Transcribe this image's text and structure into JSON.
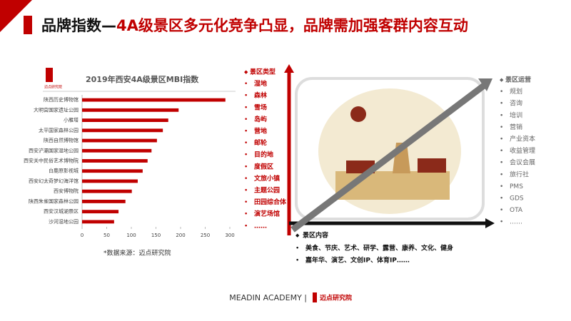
{
  "header": {
    "title_black": "品牌指数—",
    "title_red": "4A级景区多元化竞争凸显，品牌需加强客群内容互动"
  },
  "chart_data": {
    "type": "bar",
    "orientation": "horizontal",
    "title": "2019年西安4A级景区MBI指数",
    "logo": "迈点研究院",
    "categories": [
      "陕西历史博物馆",
      "大明宫国家遗址公园",
      "小雁塔",
      "太平国家森林公园",
      "陕西自然博物馆",
      "西安浐灞国家湿地公园",
      "西安关中民俗艺术博物院",
      "白鹿原影视城",
      "西安幻太奇梦幻海洋馆",
      "西安博物院",
      "陕西朱雀国家森林公园",
      "西安汉城湖景区",
      "沙河湿地公园"
    ],
    "values": [
      291,
      196,
      175,
      164,
      152,
      141,
      133,
      123,
      113,
      101,
      88,
      74,
      65
    ],
    "color": "#c00000",
    "xlim": [
      0,
      300
    ],
    "xticks": [
      0,
      50,
      100,
      150,
      200,
      250,
      300
    ],
    "source": "*数据来源：迈点研究院"
  },
  "types": {
    "heading": "景区类型",
    "items": [
      "湿地",
      "森林",
      "雪场",
      "岛屿",
      "营地",
      "邮轮",
      "目的地",
      "度假区",
      "文旅小镇",
      "主题公园",
      "田园综合体",
      "演艺场馆",
      "……"
    ]
  },
  "operations": {
    "heading": "景区运营",
    "items": [
      "规划",
      "咨询",
      "培训",
      "营销",
      "产业资本",
      "收益管理",
      "会议会展",
      "旅行社",
      "PMS",
      "GDS",
      "OTA",
      "……"
    ]
  },
  "content": {
    "heading": "景区内容",
    "lines": [
      "美食、节庆、艺术、研学、露营、康养、文化、健身",
      "嘉年华、演艺、文创IP、体育IP……"
    ]
  },
  "footer": {
    "brand": "MEADIN ACADEMY |",
    "logo": "迈点研究院"
  }
}
